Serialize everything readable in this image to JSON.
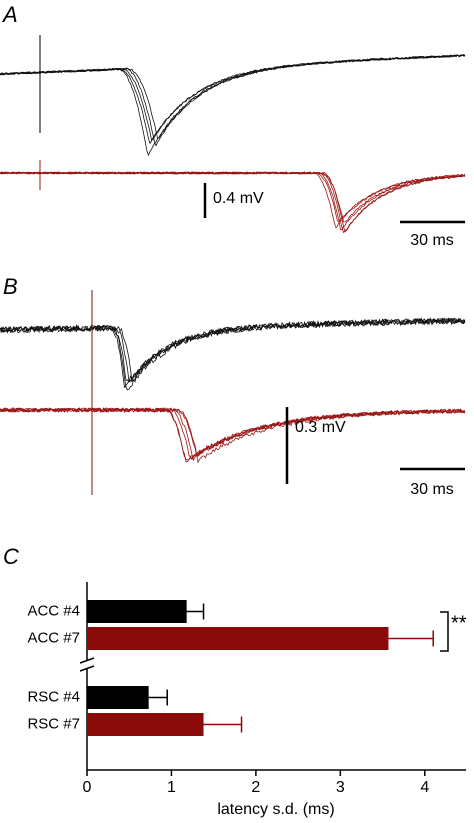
{
  "panels": {
    "a": {
      "label": "A",
      "scale_y": "0.4 mV",
      "scale_x": "30 ms"
    },
    "b": {
      "label": "B",
      "scale_y": "0.3 mV",
      "scale_x": "30 ms"
    },
    "c": {
      "label": "C"
    }
  },
  "chart_data": {
    "type": "hbar",
    "categories": [
      "ACC #4",
      "ACC #7",
      "RSC #4",
      "RSC #7"
    ],
    "values": [
      1.18,
      3.57,
      0.73,
      1.38
    ],
    "errors": [
      0.2,
      0.53,
      0.22,
      0.45
    ],
    "colors": [
      "#000000",
      "#8b0a0a",
      "#000000",
      "#8b0a0a"
    ],
    "xlabel": "latency s.d. (ms)",
    "xlim": [
      0,
      4.5
    ],
    "xticks": [
      0,
      1,
      2,
      3,
      4
    ],
    "annotation": "**"
  }
}
